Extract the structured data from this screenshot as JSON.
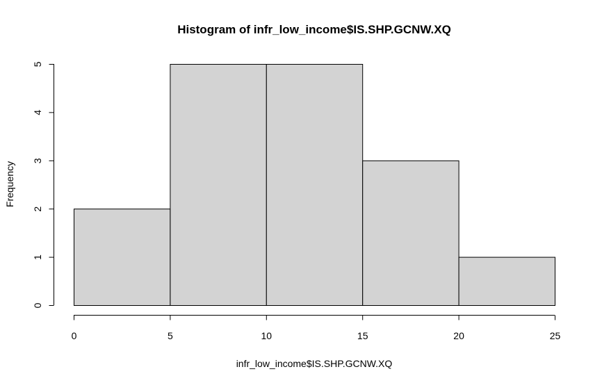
{
  "chart_data": {
    "type": "bar",
    "title": "Histogram of infr_low_income$IS.SHP.GCNW.XQ",
    "xlabel": "infr_low_income$IS.SHP.GCNW.XQ",
    "ylabel": "Frequency",
    "bins": [
      {
        "start": 0,
        "end": 5,
        "count": 2
      },
      {
        "start": 5,
        "end": 10,
        "count": 5
      },
      {
        "start": 10,
        "end": 15,
        "count": 5
      },
      {
        "start": 15,
        "end": 20,
        "count": 3
      },
      {
        "start": 20,
        "end": 25,
        "count": 1
      }
    ],
    "xticks": [
      0,
      5,
      10,
      15,
      20,
      25
    ],
    "yticks": [
      0,
      1,
      2,
      3,
      4,
      5
    ],
    "xlim": [
      0,
      25
    ],
    "ylim": [
      0,
      5
    ],
    "grid": false,
    "bar_fill": "#d3d3d3",
    "bar_stroke": "#000000"
  }
}
